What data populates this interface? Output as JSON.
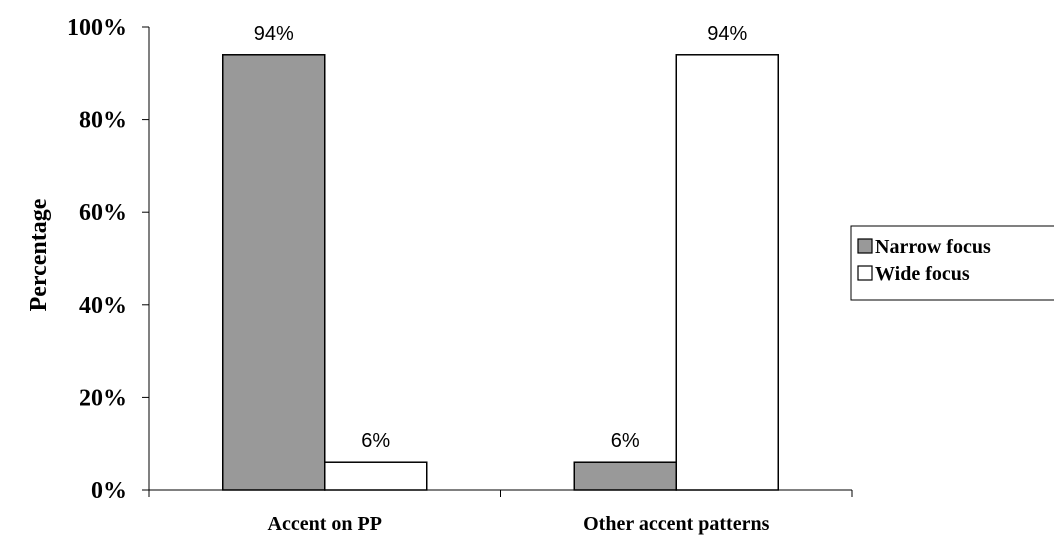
{
  "chart_data": {
    "type": "bar",
    "ylabel": "Percentage",
    "categories": [
      "Accent on PP",
      "Other accent patterns"
    ],
    "series": [
      {
        "name": "Narrow focus",
        "values": [
          94,
          6
        ],
        "labels": [
          "94%",
          "6%"
        ],
        "color": "#999999"
      },
      {
        "name": "Wide focus",
        "values": [
          6,
          94
        ],
        "labels": [
          "6%",
          "94%"
        ],
        "color": "#ffffff"
      }
    ],
    "ylim": [
      0,
      100
    ],
    "yticks": [
      0,
      20,
      40,
      60,
      80,
      100
    ],
    "ytick_labels": [
      "0%",
      "20%",
      "40%",
      "60%",
      "80%",
      "100%"
    ],
    "grid": false,
    "legend": "right"
  }
}
